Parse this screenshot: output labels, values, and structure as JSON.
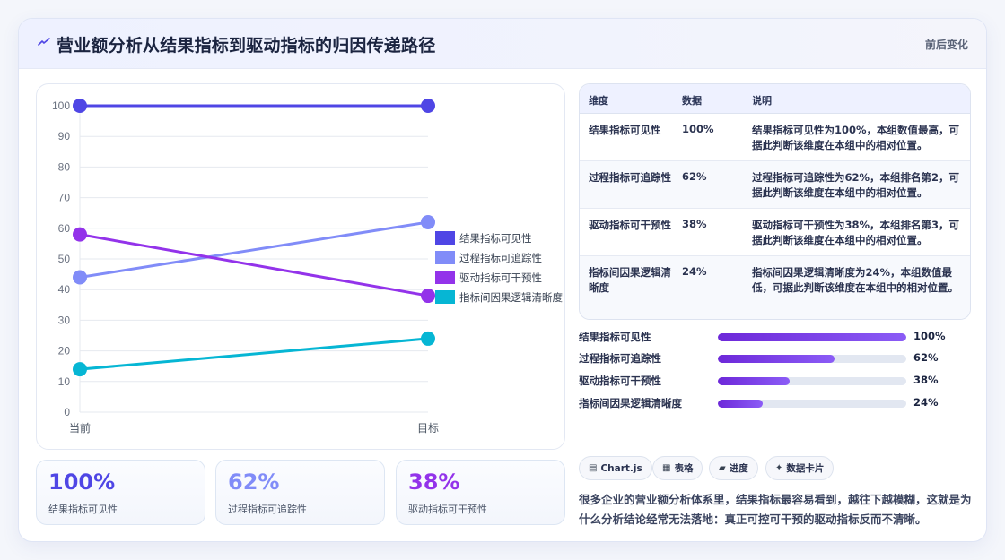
{
  "header": {
    "title": "营业额分析从结果指标到驱动指标的归因传递路径",
    "tag": "前后变化",
    "icon": "lightning-icon"
  },
  "colors": {
    "series": [
      "#4f46e5",
      "#818cf8",
      "#9333ea",
      "#06b6d4"
    ],
    "accent": "#4f46e5"
  },
  "chart_data": {
    "type": "line",
    "categories": [
      "当前",
      "目标"
    ],
    "series": [
      {
        "name": "结果指标可见性",
        "values": [
          100,
          100
        ]
      },
      {
        "name": "过程指标可追踪性",
        "values": [
          44,
          62
        ]
      },
      {
        "name": "驱动指标可干预性",
        "values": [
          58,
          38
        ]
      },
      {
        "name": "指标间因果逻辑清晰度",
        "values": [
          14,
          24
        ]
      }
    ],
    "ylim": [
      0,
      100
    ],
    "yticks": [
      0,
      10,
      20,
      30,
      40,
      50,
      60,
      70,
      80,
      90,
      100
    ],
    "grid": true,
    "legend": "right"
  },
  "stats": [
    {
      "value": "100%",
      "label": "结果指标可见性",
      "color": "#4f46e5"
    },
    {
      "value": "62%",
      "label": "过程指标可追踪性",
      "color": "#818cf8"
    },
    {
      "value": "38%",
      "label": "驱动指标可干预性",
      "color": "#9333ea"
    }
  ],
  "table": {
    "headers": [
      "维度",
      "数据",
      "说明"
    ],
    "rows": [
      {
        "dim": "结果指标可见性",
        "value": "100%",
        "desc": "结果指标可见性为100%，本组数值最高，可据此判断该维度在本组中的相对位置。"
      },
      {
        "dim": "过程指标可追踪性",
        "value": "62%",
        "desc": "过程指标可追踪性为62%，本组排名第2，可据此判断该维度在本组中的相对位置。"
      },
      {
        "dim": "驱动指标可干预性",
        "value": "38%",
        "desc": "驱动指标可干预性为38%，本组排名第3，可据此判断该维度在本组中的相对位置。"
      },
      {
        "dim": "指标间因果逻辑清晰度",
        "value": "24%",
        "desc": "指标间因果逻辑清晰度为24%，本组数值最低，可据此判断该维度在本组中的相对位置。"
      }
    ]
  },
  "progress": [
    {
      "label": "结果指标可见性",
      "value": 100,
      "text": "100%"
    },
    {
      "label": "过程指标可追踪性",
      "value": 62,
      "text": "62%"
    },
    {
      "label": "驱动指标可干预性",
      "value": 38,
      "text": "38%"
    },
    {
      "label": "指标间因果逻辑清晰度",
      "value": 24,
      "text": "24%"
    }
  ],
  "chips": [
    {
      "icon": "▤",
      "label": "Chart.js"
    },
    {
      "icon": "▦",
      "label": "表格"
    },
    {
      "icon": "▰",
      "label": "进度"
    },
    {
      "icon": "✦",
      "label": "数据卡片"
    }
  ],
  "note": "很多企业的营业额分析体系里，结果指标最容易看到，越往下越模糊，这就是为什么分析结论经常无法落地：真正可控可干预的驱动指标反而不清晰。"
}
